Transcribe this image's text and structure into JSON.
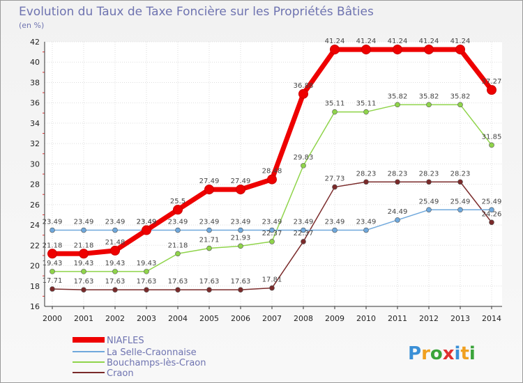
{
  "chart_data": {
    "type": "line",
    "title": "Evolution du Taux de Taxe Foncière sur les Propriétés Bâties",
    "subtitle": "(en %)",
    "xlabel": "",
    "ylabel": "",
    "x": [
      "2000",
      "2001",
      "2002",
      "2003",
      "2004",
      "2005",
      "2006",
      "2007",
      "2008",
      "2009",
      "2010",
      "2011",
      "2012",
      "2013",
      "2014"
    ],
    "ylim": [
      16,
      42
    ],
    "yticks": [
      "16",
      "18",
      "20",
      "22",
      "24",
      "26",
      "28",
      "30",
      "32",
      "34",
      "36",
      "38",
      "40",
      "42"
    ],
    "grid": true,
    "legend_position": "bottom-left",
    "series": [
      {
        "name": "NIAFLES",
        "color": "#ee0000",
        "values": [
          21.18,
          21.18,
          21.48,
          23.49,
          25.5,
          27.49,
          27.49,
          28.48,
          36.88,
          41.24,
          41.24,
          41.24,
          41.24,
          41.24,
          37.27
        ],
        "labels": [
          "21.18",
          "21.18",
          "21.48",
          "23.49",
          "25.5",
          "27.49",
          "27.49",
          "28.48",
          "36.88",
          "41.24",
          "41.24",
          "41.24",
          "41.24",
          "41.24",
          "37.27"
        ]
      },
      {
        "name": "La Selle-Craonnaise",
        "color": "#6fa8dc",
        "values": [
          23.49,
          23.49,
          23.49,
          23.49,
          23.49,
          23.49,
          23.49,
          23.49,
          23.49,
          23.49,
          23.49,
          24.49,
          25.49,
          25.49,
          25.49
        ],
        "labels": [
          "23.49",
          "23.49",
          "23.49",
          "23.49",
          "23.49",
          "23.49",
          "23.49",
          "23.49",
          "23.49",
          "23.49",
          "23.49",
          "24.49",
          "25.49",
          "25.49",
          "25.49"
        ]
      },
      {
        "name": "Bouchamps-lès-Craon",
        "color": "#8fd44a",
        "values": [
          19.43,
          19.43,
          19.43,
          19.43,
          21.18,
          21.71,
          21.93,
          22.37,
          29.83,
          35.11,
          35.11,
          35.82,
          35.82,
          35.82,
          31.85
        ],
        "labels": [
          "19.43",
          "19.43",
          "19.43",
          "19.43",
          "21.18",
          "21.71",
          "21.93",
          "22.37",
          "29.83",
          "35.11",
          "35.11",
          "35.82",
          "35.82",
          "35.82",
          "31.85"
        ]
      },
      {
        "name": "Craon",
        "color": "#7a2a2a",
        "values": [
          17.71,
          17.63,
          17.63,
          17.63,
          17.63,
          17.63,
          17.63,
          17.81,
          22.37,
          27.73,
          28.23,
          28.23,
          28.23,
          28.23,
          24.26
        ],
        "labels": [
          "17.71",
          "17.63",
          "17.63",
          "17.63",
          "17.63",
          "17.63",
          "17.63",
          "17.81",
          "22.37",
          "27.73",
          "28.23",
          "28.23",
          "28.23",
          "28.23",
          "24.26"
        ]
      }
    ]
  },
  "logo": {
    "text": "Proxiti",
    "letters": [
      "P",
      "r",
      "o",
      "x",
      "i",
      "t",
      "i"
    ],
    "colors": [
      "#3a8fd6",
      "#f0a020",
      "#3aa43a",
      "#e03030",
      "#3a8fd6",
      "#f0a020",
      "#3aa43a"
    ]
  }
}
